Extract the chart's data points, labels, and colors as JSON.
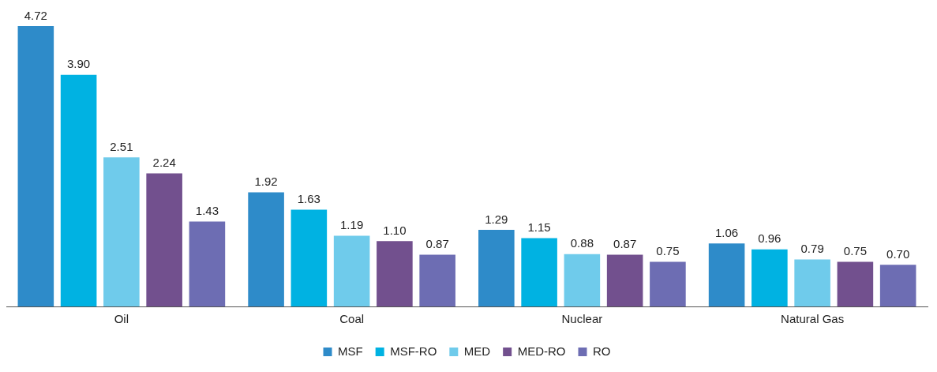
{
  "chart_data": {
    "type": "bar",
    "categories": [
      "Oil",
      "Coal",
      "Nuclear",
      "Natural Gas"
    ],
    "legend": "bottom",
    "grid": false,
    "series": [
      {
        "name": "MSF",
        "color": "#2e8bc9",
        "values": [
          4.72,
          1.92,
          1.29,
          1.06
        ],
        "value_labels": [
          "4.72",
          "1.92",
          "1.29",
          "1.06"
        ]
      },
      {
        "name": "MSF-RO",
        "color": "#00b2e2",
        "values": [
          3.9,
          1.63,
          1.15,
          0.96
        ],
        "value_labels": [
          "3.90",
          "1.63",
          "1.15",
          "0.96"
        ]
      },
      {
        "name": "MED",
        "color": "#6fcbeb",
        "values": [
          2.51,
          1.19,
          0.88,
          0.79
        ],
        "value_labels": [
          "2.51",
          "1.19",
          "0.88",
          "0.79"
        ]
      },
      {
        "name": "MED-RO",
        "color": "#72508e",
        "values": [
          2.24,
          1.1,
          0.87,
          0.75
        ],
        "value_labels": [
          "2.24",
          "1.10",
          "0.87",
          "0.75"
        ]
      },
      {
        "name": "RO",
        "color": "#6d6db3",
        "values": [
          1.43,
          0.87,
          0.75,
          0.7
        ],
        "value_labels": [
          "1.43",
          "0.87",
          "0.75",
          "0.70"
        ]
      }
    ]
  }
}
